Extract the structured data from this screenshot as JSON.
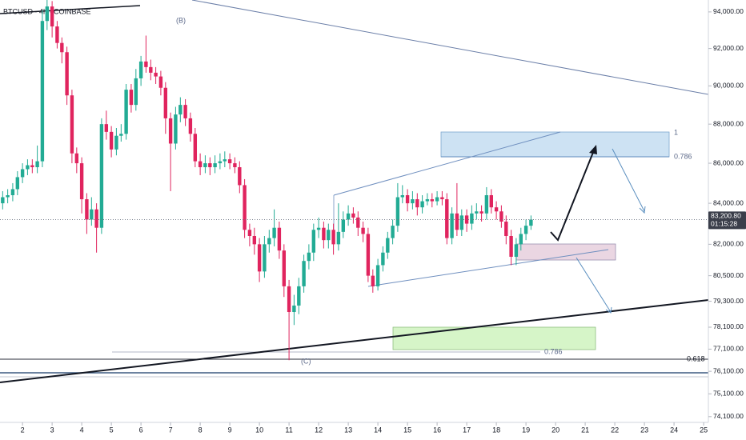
{
  "chart_data": {
    "type": "candlestick",
    "title": "BTCUSD · 4h · COINBASE",
    "x": [
      1.33,
      1.5,
      1.67,
      1.83,
      2,
      2.17,
      2.33,
      2.5,
      2.67,
      2.83,
      3,
      3.17,
      3.33,
      3.5,
      3.67,
      3.83,
      4,
      4.17,
      4.33,
      4.5,
      4.67,
      4.83,
      5,
      5.17,
      5.33,
      5.5,
      5.67,
      5.83,
      6,
      6.17,
      6.33,
      6.5,
      6.67,
      6.83,
      7,
      7.17,
      7.33,
      7.5,
      7.67,
      7.83,
      8,
      8.17,
      8.33,
      8.5,
      8.67,
      8.83,
      9,
      9.17,
      9.33,
      9.5,
      9.67,
      9.83,
      10,
      10.17,
      10.33,
      10.5,
      10.67,
      10.83,
      11,
      11.17,
      11.33,
      11.5,
      11.67,
      11.83,
      12,
      12.17,
      12.33,
      12.5,
      12.67,
      12.83,
      13,
      13.17,
      13.33,
      13.5,
      13.67,
      13.83,
      14,
      14.17,
      14.33,
      14.5,
      14.67,
      14.83,
      15,
      15.17,
      15.33,
      15.5,
      15.67,
      15.83,
      16,
      16.17,
      16.33,
      16.5,
      16.67,
      16.83,
      17,
      17.17,
      17.33,
      17.5,
      17.67,
      17.83,
      18,
      18.17,
      18.33,
      18.5,
      18.67,
      18.83,
      19,
      19.17
    ],
    "open": [
      84000,
      84300,
      84400,
      84700,
      85300,
      85700,
      85900,
      85800,
      86100,
      93500,
      94300,
      93200,
      92300,
      91800,
      89500,
      86500,
      86000,
      84200,
      83200,
      83700,
      82800,
      88000,
      87600,
      86700,
      87400,
      87500,
      89800,
      89000,
      90400,
      91300,
      91000,
      90700,
      90500,
      89900,
      88300,
      87000,
      88500,
      89000,
      88300,
      87500,
      86100,
      85800,
      86000,
      85800,
      86000,
      86100,
      86200,
      86000,
      85800,
      84900,
      82700,
      82400,
      82000,
      80700,
      82000,
      82300,
      82800,
      81700,
      80000,
      78800,
      79100,
      80000,
      81200,
      81600,
      82700,
      82800,
      82200,
      82700,
      82000,
      82600,
      83200,
      83500,
      83300,
      82800,
      82500,
      80500,
      80000,
      81000,
      81600,
      82300,
      82900,
      84300,
      84400,
      84000,
      84200,
      83800,
      84100,
      84200,
      84100,
      84300,
      84200,
      82300,
      83500,
      82700,
      83400,
      83000,
      83500,
      83600,
      83500,
      84400,
      83800,
      83600,
      83100,
      82400,
      81400,
      82000,
      82500,
      82900
    ],
    "high": [
      84600,
      84700,
      85000,
      85600,
      86000,
      86200,
      86200,
      86900,
      94100,
      95000,
      94600,
      93500,
      92600,
      92100,
      89800,
      86800,
      86300,
      84500,
      84300,
      84000,
      88300,
      88700,
      87900,
      87800,
      88000,
      90100,
      90100,
      90900,
      91600,
      92700,
      91400,
      91000,
      90800,
      90200,
      88600,
      88900,
      89400,
      89300,
      88600,
      87800,
      86500,
      86400,
      86300,
      86400,
      86500,
      86600,
      86500,
      86300,
      86100,
      85200,
      83000,
      82800,
      82300,
      82400,
      82700,
      83700,
      83100,
      82000,
      80300,
      79600,
      80400,
      81500,
      82000,
      83000,
      83300,
      83100,
      83000,
      83000,
      84000,
      83600,
      83900,
      83800,
      83600,
      83100,
      82800,
      80800,
      81300,
      81900,
      82600,
      83200,
      85000,
      84900,
      84700,
      84600,
      84500,
      84400,
      84500,
      84500,
      84600,
      84600,
      84500,
      83800,
      85000,
      83700,
      83700,
      83900,
      84000,
      83900,
      84800,
      84700,
      84100,
      83900,
      83400,
      82700,
      82300,
      82800,
      83200,
      83400
    ],
    "low": [
      83700,
      84000,
      84100,
      84400,
      85000,
      85400,
      85500,
      85500,
      85800,
      93000,
      92600,
      92000,
      91200,
      89000,
      86000,
      85500,
      83500,
      82500,
      82900,
      81600,
      82500,
      87200,
      86300,
      86400,
      87100,
      87200,
      88600,
      88700,
      90000,
      90700,
      90300,
      90100,
      89500,
      87500,
      84600,
      86700,
      88100,
      87900,
      87100,
      85800,
      85400,
      85500,
      85400,
      85500,
      85700,
      85800,
      85700,
      85500,
      84500,
      82300,
      81900,
      81500,
      80200,
      80400,
      81600,
      81900,
      81300,
      79500,
      76600,
      78200,
      78700,
      79700,
      80800,
      81200,
      82300,
      81800,
      81800,
      81500,
      81700,
      82300,
      82900,
      83000,
      82400,
      82100,
      80200,
      79700,
      79800,
      80700,
      81300,
      82000,
      82600,
      84000,
      83600,
      83700,
      83400,
      83500,
      83900,
      83800,
      83900,
      83900,
      82000,
      82000,
      82400,
      82400,
      82600,
      82700,
      83200,
      83100,
      83200,
      83500,
      83200,
      82800,
      82000,
      81000,
      81000,
      81700,
      82200,
      82700
    ],
    "close": [
      84300,
      84400,
      84700,
      85300,
      85700,
      85900,
      85800,
      86100,
      93500,
      94300,
      93200,
      92300,
      91800,
      89500,
      86500,
      86000,
      84200,
      83200,
      83700,
      82800,
      88000,
      87600,
      86700,
      87400,
      87500,
      89800,
      89000,
      90400,
      91300,
      91000,
      90700,
      90500,
      89900,
      88300,
      87000,
      88500,
      89000,
      88300,
      87500,
      86100,
      85800,
      86000,
      85800,
      86000,
      86100,
      86200,
      86000,
      85800,
      84900,
      82700,
      82400,
      82000,
      80700,
      82000,
      82300,
      82800,
      81700,
      80000,
      78800,
      79100,
      80000,
      81200,
      81600,
      82700,
      82800,
      82200,
      82700,
      82000,
      82600,
      83200,
      83500,
      83300,
      82800,
      82500,
      80500,
      80000,
      81000,
      81600,
      82300,
      82900,
      84300,
      84400,
      84000,
      84200,
      83800,
      84100,
      84200,
      84100,
      84300,
      84200,
      82300,
      83500,
      82700,
      83400,
      83000,
      83500,
      83600,
      83500,
      84400,
      83800,
      83600,
      83100,
      82400,
      81400,
      82000,
      82500,
      82900,
      83200
    ],
    "up_color": "#22ab94",
    "down_color": "#e0245e",
    "log_scale": true,
    "grid": false,
    "xlim": [
      1.24,
      25.16
    ],
    "xticks": [
      2,
      3,
      4,
      5,
      6,
      7,
      8,
      9,
      10,
      11,
      12,
      13,
      14,
      15,
      16,
      17,
      18,
      19,
      20,
      21,
      22,
      23,
      24,
      25
    ],
    "ylim": [
      73850,
      94660
    ],
    "yticks": [
      {
        "value": 94000,
        "label": "94,000.00"
      },
      {
        "value": 92000,
        "label": "92,000.00"
      },
      {
        "value": 90000,
        "label": "90,000.00"
      },
      {
        "value": 88000,
        "label": "88,000.00"
      },
      {
        "value": 86000,
        "label": "86,000.00"
      },
      {
        "value": 84000,
        "label": "84,000.00"
      },
      {
        "value": 82000,
        "label": "82,000.00"
      },
      {
        "value": 80500,
        "label": "80,500.00"
      },
      {
        "value": 79300,
        "label": "79,300.00"
      },
      {
        "value": 78100,
        "label": "78,100.00"
      },
      {
        "value": 77100,
        "label": "77,100.00"
      },
      {
        "value": 76100,
        "label": "76,100.00"
      },
      {
        "value": 75100,
        "label": "75,100.00"
      },
      {
        "value": 74100,
        "label": "74,100.00"
      }
    ],
    "last_price": {
      "value": 83200.8,
      "label": "83,200.80"
    },
    "countdown": "01:15:28",
    "annotations": [
      "(B)",
      "(C)",
      "1",
      "0.786",
      "0.786",
      "0.618"
    ]
  }
}
